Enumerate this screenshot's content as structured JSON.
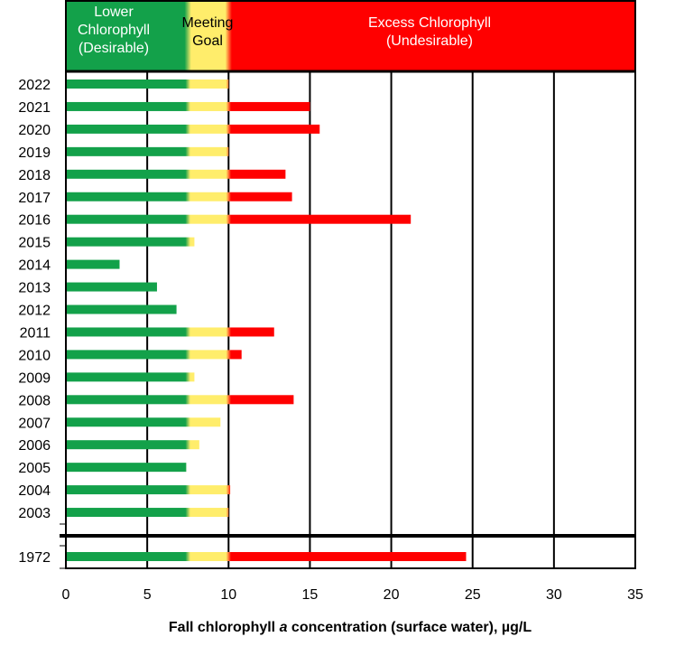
{
  "chart_data": {
    "type": "bar",
    "orientation": "horizontal",
    "stacked": true,
    "xlabel": {
      "before": "Fall chlorophyll ",
      "italic": "a",
      "after": " concentration (surface water), µg/L"
    },
    "xlim": [
      0,
      35
    ],
    "xticks": [
      "0",
      "5",
      "10",
      "15",
      "20",
      "25",
      "30",
      "35"
    ],
    "grid": "vertical",
    "zones": [
      {
        "lines": [
          "Lower",
          "Chlorophyll",
          "(Desirable)"
        ],
        "from": 0,
        "to": 7.5,
        "color": "#13a14a",
        "text_color": "#ffffff"
      },
      {
        "lines": [
          "Meeting",
          "Goal"
        ],
        "from": 7.5,
        "to": 10,
        "color": "#ffed6b",
        "text_color": "#000000"
      },
      {
        "lines": [
          "Excess Chlorophyll",
          "(Undesirable)"
        ],
        "from": 10,
        "to": 35,
        "color": "#ff0000",
        "text_color": "#ffffff"
      }
    ],
    "thresholds": {
      "desirable_max": 7.5,
      "goal_max": 10
    },
    "colors": {
      "green": "#13a14a",
      "yellow": "#ffed6b",
      "red": "#ff0000",
      "grid": "#000000"
    },
    "categories": [
      "2022",
      "2021",
      "2020",
      "2019",
      "2018",
      "2017",
      "2016",
      "2015",
      "2014",
      "2013",
      "2012",
      "2011",
      "2010",
      "2009",
      "2008",
      "2007",
      "2006",
      "2005",
      "2004",
      "2003",
      "1972"
    ],
    "values": [
      10.0,
      15.0,
      15.6,
      10.0,
      13.5,
      13.9,
      21.2,
      7.9,
      3.3,
      5.6,
      6.8,
      12.8,
      10.8,
      7.9,
      14.0,
      9.5,
      8.2,
      7.4,
      10.1,
      10.0,
      24.6
    ]
  }
}
